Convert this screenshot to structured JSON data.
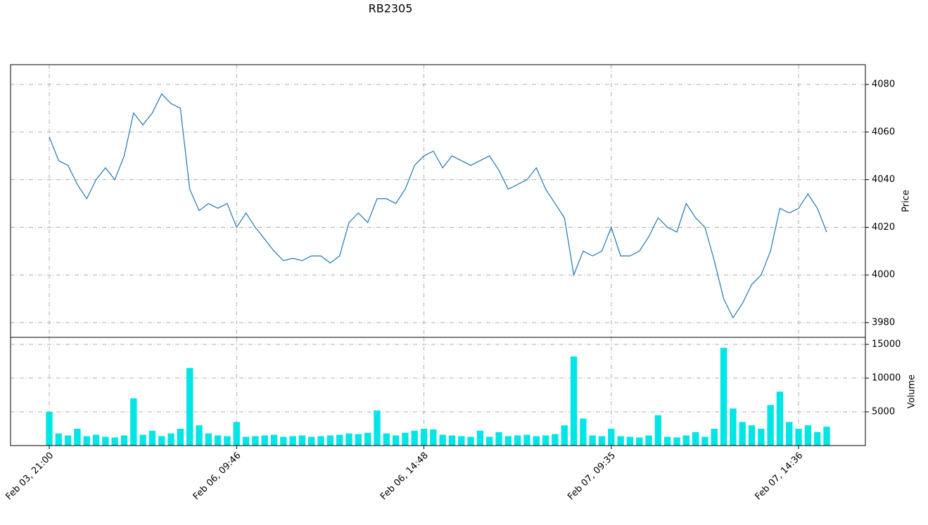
{
  "chart_data": [
    {
      "type": "line",
      "title": "RB2305",
      "ylabel": "Price",
      "color": "#1f77b4",
      "grid": true,
      "ylim": [
        3973.8,
        4088.3
      ],
      "yticks": [
        3980,
        4000,
        4020,
        4040,
        4060,
        4080
      ],
      "values": [
        4058,
        4048,
        4046,
        4038,
        4032,
        4040,
        4045,
        4040,
        4050,
        4068,
        4063,
        4068,
        4076,
        4072,
        4070,
        4036,
        4027,
        4030,
        4028,
        4030,
        4020,
        4026,
        4020,
        4015,
        4010,
        4006,
        4007,
        4006,
        4008,
        4008,
        4005,
        4008,
        4022,
        4026,
        4022,
        4032,
        4032,
        4030,
        4036,
        4046,
        4050,
        4052,
        4045,
        4050,
        4048,
        4046,
        4048,
        4050,
        4044,
        4036,
        4038,
        4040,
        4045,
        4036,
        4030,
        4024,
        4000,
        4010,
        4008,
        4010,
        4020,
        4008,
        4008,
        4010,
        4016,
        4024,
        4020,
        4018,
        4030,
        4024,
        4020,
        4006,
        3990,
        3982,
        3988,
        3996,
        4000,
        4010,
        4028,
        4026,
        4028,
        4034,
        4028,
        4018
      ]
    },
    {
      "type": "bar",
      "ylabel": "Volume",
      "color": "#00e5e5",
      "grid": true,
      "ylim": [
        0,
        16040
      ],
      "yticks": [
        5000,
        10000,
        15000
      ],
      "categories": [
        "Feb 03, 21:00",
        null,
        null,
        null,
        null,
        null,
        null,
        null,
        null,
        null,
        null,
        null,
        null,
        null,
        null,
        null,
        null,
        null,
        null,
        null,
        "Feb 06, 09:46",
        null,
        null,
        null,
        null,
        null,
        null,
        null,
        null,
        null,
        null,
        null,
        null,
        null,
        null,
        null,
        null,
        null,
        null,
        null,
        "Feb 06, 14:48",
        null,
        null,
        null,
        null,
        null,
        null,
        null,
        null,
        null,
        null,
        null,
        null,
        null,
        null,
        null,
        null,
        null,
        null,
        null,
        "Feb 07, 09:35",
        null,
        null,
        null,
        null,
        null,
        null,
        null,
        null,
        null,
        null,
        null,
        null,
        null,
        null,
        null,
        null,
        null,
        null,
        null,
        "Feb 07, 14:36",
        null,
        null,
        null
      ],
      "values": [
        5000,
        1800,
        1500,
        2500,
        1400,
        1600,
        1300,
        1200,
        1500,
        7000,
        1600,
        2200,
        1400,
        1800,
        2500,
        11500,
        3000,
        1800,
        1500,
        1400,
        3500,
        1300,
        1400,
        1500,
        1600,
        1300,
        1400,
        1500,
        1300,
        1400,
        1500,
        1600,
        1800,
        1700,
        1900,
        5200,
        1800,
        1500,
        1900,
        2200,
        2500,
        2400,
        1600,
        1500,
        1400,
        1300,
        2200,
        1300,
        2000,
        1400,
        1500,
        1600,
        1400,
        1500,
        1700,
        3000,
        13200,
        4000,
        1500,
        1400,
        2500,
        1400,
        1300,
        1200,
        1500,
        4500,
        1300,
        1200,
        1500,
        2000,
        1300,
        2500,
        14500,
        5500,
        3500,
        3000,
        2500,
        6000,
        8000,
        3500,
        2500,
        3000,
        2000,
        2800
      ]
    }
  ]
}
